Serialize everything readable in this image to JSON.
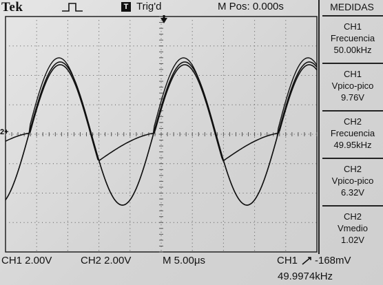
{
  "brand": "Tek",
  "trigger": {
    "status": "Trig'd",
    "box_glyph": "T"
  },
  "horizontal_position": "M Pos: 0.000s",
  "menu": {
    "title": "MEDIDAS",
    "items": [
      {
        "channel": "CH1",
        "measure": "Frecuencia",
        "value": "50.00kHz"
      },
      {
        "channel": "CH1",
        "measure": "Vpico-pico",
        "value": "9.76V"
      },
      {
        "channel": "CH2",
        "measure": "Frecuencia",
        "value": "49.95kHz"
      },
      {
        "channel": "CH2",
        "measure": "Vpico-pico",
        "value": "6.32V"
      },
      {
        "channel": "CH2",
        "measure": "Vmedio",
        "value": "1.02V"
      }
    ]
  },
  "bottom": {
    "ch1_scale": "CH1  2.00V",
    "ch2_scale": "CH2  2.00V",
    "timebase": "M 5.00μs",
    "trigger_source": "CH1",
    "trigger_level": "-168mV",
    "trigger_frequency": "49.9974kHz"
  },
  "channel_marker": "2+",
  "colors": {
    "background": "#dcdcdc",
    "trace": "#111111",
    "grid": "#555555"
  }
}
